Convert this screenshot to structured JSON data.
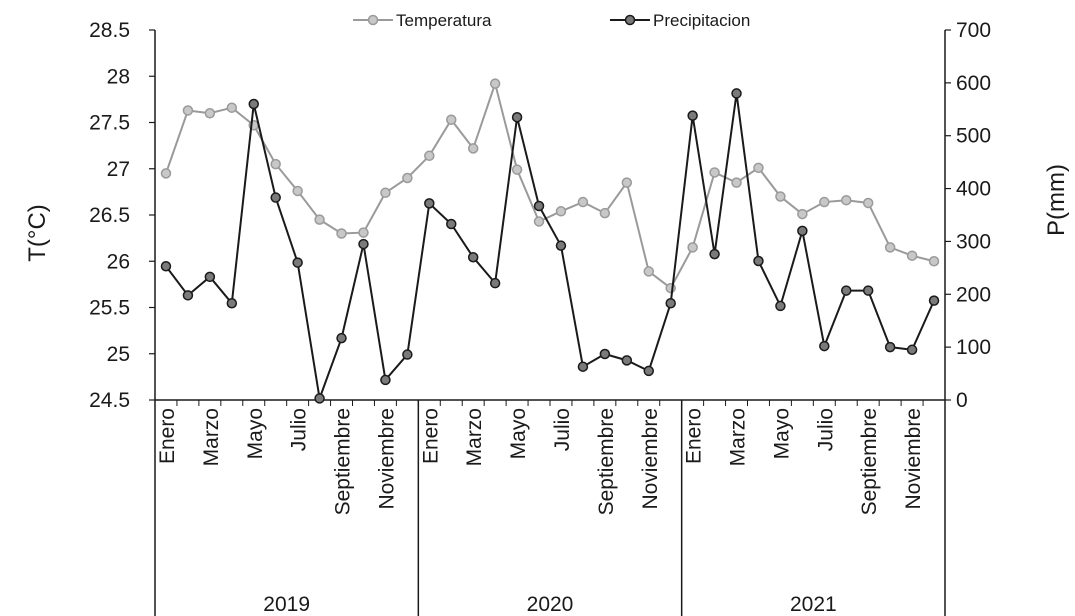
{
  "chart_data": {
    "type": "line",
    "title": "",
    "ylabel_left": "T(°C)",
    "ylabel_right": "P(mm)",
    "ylim_left": [
      24.5,
      28.5
    ],
    "ylim_right": [
      0,
      700
    ],
    "yticks_left": [
      "24.5",
      "25",
      "25.5",
      "26",
      "26.5",
      "27",
      "27.5",
      "28",
      "28.5"
    ],
    "yticks_right": [
      "0",
      "100",
      "200",
      "300",
      "400",
      "500",
      "600",
      "700"
    ],
    "year_groups": [
      "2019",
      "2020",
      "2021"
    ],
    "month_labels": [
      "Enero",
      "",
      "Marzo",
      "",
      "Mayo",
      "",
      "Julio",
      "",
      "Septiembre",
      "",
      "Noviembre",
      ""
    ],
    "legend": {
      "position": "top-center",
      "entries": [
        "Temperatura",
        "Precipitacion"
      ]
    },
    "grid": false,
    "series": [
      {
        "name": "Temperatura",
        "axis": "left",
        "color": "#9a9a9a",
        "values": [
          26.95,
          27.63,
          27.6,
          27.66,
          27.47,
          27.05,
          26.76,
          26.45,
          26.3,
          26.31,
          26.74,
          26.9,
          27.14,
          27.53,
          27.22,
          27.92,
          26.99,
          26.43,
          26.54,
          26.64,
          26.52,
          26.85,
          25.89,
          25.71,
          26.15,
          26.96,
          26.85,
          27.01,
          26.7,
          26.51,
          26.64,
          26.66,
          26.63,
          26.15,
          26.06,
          26.0
        ]
      },
      {
        "name": "Precipitacion",
        "axis": "right",
        "color": "#1a1a1a",
        "values": [
          253,
          198,
          233,
          183,
          560,
          383,
          260,
          3,
          117,
          295,
          38,
          86,
          372,
          333,
          270,
          221,
          535,
          367,
          292,
          63,
          87,
          75,
          55,
          183,
          538,
          276,
          580,
          263,
          178,
          320,
          102,
          207,
          207,
          100,
          95,
          188
        ]
      }
    ]
  }
}
